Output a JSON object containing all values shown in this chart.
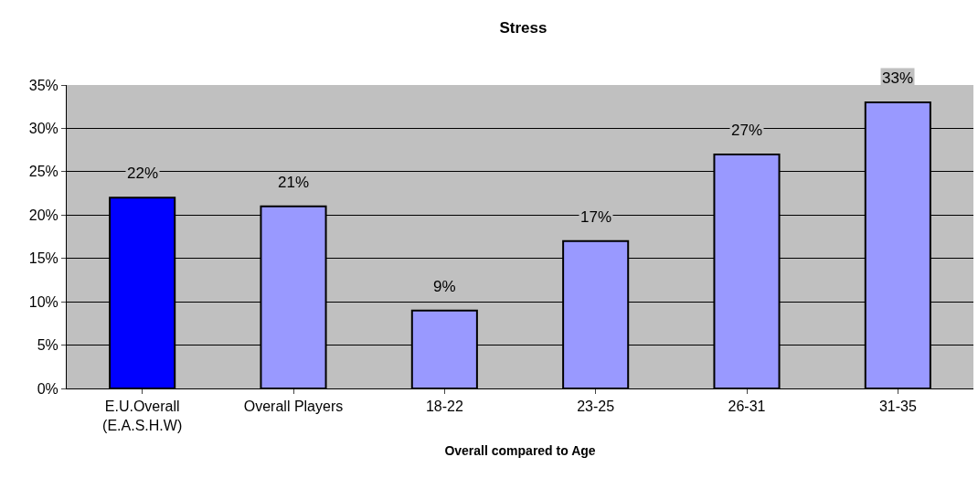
{
  "chart_data": {
    "type": "bar",
    "title": "Stress",
    "xlabel": "Overall compared to Age",
    "categories": [
      "E.U.Overall\n(E.A.S.H.W)",
      "Overall Players",
      "18-22",
      "23-25",
      "26-31",
      "31-35"
    ],
    "values": [
      22,
      21,
      9,
      17,
      27,
      33
    ],
    "colors": [
      "#0000ff",
      "#9999ff",
      "#9999ff",
      "#9999ff",
      "#9999ff",
      "#9999ff"
    ],
    "value_labels": [
      "22%",
      "21%",
      "9%",
      "17%",
      "27%",
      "33%"
    ],
    "ylim": [
      0,
      35
    ],
    "yticks": [
      {
        "value": 0,
        "label": "0%"
      },
      {
        "value": 5,
        "label": "5%"
      },
      {
        "value": 10,
        "label": "10%"
      },
      {
        "value": 15,
        "label": "15%"
      },
      {
        "value": 20,
        "label": "20%"
      },
      {
        "value": 25,
        "label": "25%"
      },
      {
        "value": 30,
        "label": "30%"
      },
      {
        "value": 35,
        "label": "35%"
      }
    ],
    "grid": "y"
  }
}
